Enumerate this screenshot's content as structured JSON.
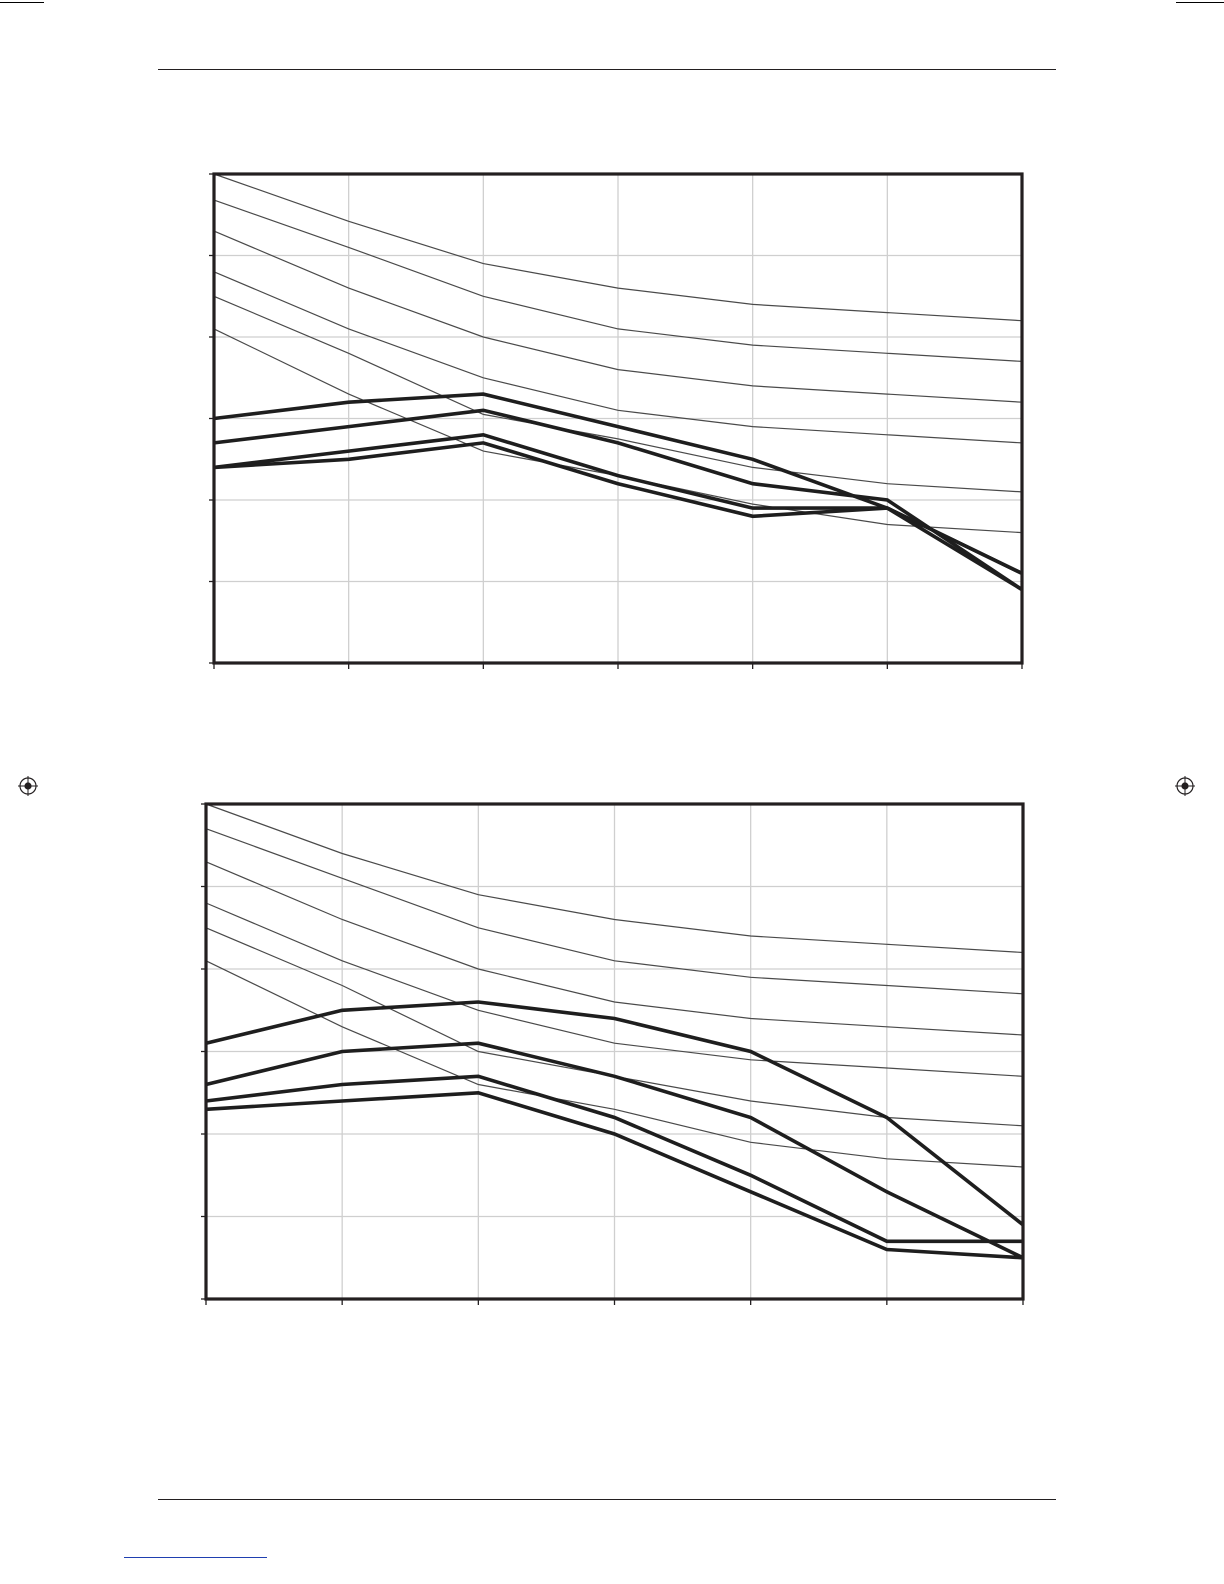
{
  "colors": {
    "frame": "#231f20",
    "grid": "#cfcfcf",
    "thin_series": "#4a4a4a",
    "thick_series": "#1e1e1e",
    "underline": "#1f3fb0"
  },
  "icons": {
    "registration_mark": "crosshair-circle-icon"
  },
  "chart_data": [
    {
      "type": "line",
      "grid": true,
      "xlim": [
        0,
        6
      ],
      "ylim": [
        0,
        6
      ],
      "x": [
        0,
        1,
        2,
        3,
        4,
        5,
        6
      ],
      "series": [
        {
          "weight": "thin",
          "values": [
            6.0,
            5.42,
            4.9,
            4.6,
            4.4,
            4.3,
            4.2
          ]
        },
        {
          "weight": "thin",
          "values": [
            5.68,
            5.1,
            4.5,
            4.1,
            3.9,
            3.8,
            3.7
          ]
        },
        {
          "weight": "thin",
          "values": [
            5.3,
            4.6,
            4.0,
            3.6,
            3.4,
            3.3,
            3.2
          ]
        },
        {
          "weight": "thin",
          "values": [
            4.8,
            4.1,
            3.5,
            3.1,
            2.9,
            2.8,
            2.7
          ]
        },
        {
          "weight": "thin",
          "values": [
            4.5,
            3.8,
            3.05,
            2.75,
            2.4,
            2.2,
            2.1
          ]
        },
        {
          "weight": "thin",
          "values": [
            4.1,
            3.3,
            2.6,
            2.3,
            1.95,
            1.7,
            1.6
          ]
        },
        {
          "weight": "thick",
          "values": [
            3.0,
            3.2,
            3.3,
            2.9,
            2.5,
            1.9,
            1.1
          ]
        },
        {
          "weight": "thick",
          "values": [
            2.7,
            2.9,
            3.1,
            2.7,
            2.2,
            2.0,
            0.9
          ]
        },
        {
          "weight": "thick",
          "values": [
            2.4,
            2.6,
            2.8,
            2.3,
            1.9,
            1.9,
            1.1
          ]
        },
        {
          "weight": "thick",
          "values": [
            2.4,
            2.5,
            2.7,
            2.2,
            1.8,
            1.9,
            0.9
          ]
        }
      ]
    },
    {
      "type": "line",
      "grid": true,
      "xlim": [
        0,
        6
      ],
      "ylim": [
        0,
        6
      ],
      "x": [
        0,
        1,
        2,
        3,
        4,
        5,
        6
      ],
      "series": [
        {
          "weight": "thin",
          "values": [
            6.0,
            5.4,
            4.9,
            4.6,
            4.4,
            4.3,
            4.2
          ]
        },
        {
          "weight": "thin",
          "values": [
            5.7,
            5.1,
            4.5,
            4.1,
            3.9,
            3.8,
            3.7
          ]
        },
        {
          "weight": "thin",
          "values": [
            5.3,
            4.6,
            4.0,
            3.6,
            3.4,
            3.3,
            3.2
          ]
        },
        {
          "weight": "thin",
          "values": [
            4.8,
            4.1,
            3.5,
            3.1,
            2.9,
            2.8,
            2.7
          ]
        },
        {
          "weight": "thin",
          "values": [
            4.5,
            3.8,
            3.0,
            2.7,
            2.4,
            2.2,
            2.1
          ]
        },
        {
          "weight": "thin",
          "values": [
            4.1,
            3.3,
            2.6,
            2.3,
            1.9,
            1.7,
            1.6
          ]
        },
        {
          "weight": "thick",
          "values": [
            3.1,
            3.5,
            3.6,
            3.4,
            3.0,
            2.2,
            0.9
          ]
        },
        {
          "weight": "thick",
          "values": [
            2.6,
            3.0,
            3.1,
            2.7,
            2.2,
            1.3,
            0.5
          ]
        },
        {
          "weight": "thick",
          "values": [
            2.4,
            2.6,
            2.7,
            2.2,
            1.5,
            0.7,
            0.7
          ]
        },
        {
          "weight": "thick",
          "values": [
            2.3,
            2.4,
            2.5,
            2.0,
            1.3,
            0.6,
            0.5
          ]
        }
      ]
    }
  ]
}
